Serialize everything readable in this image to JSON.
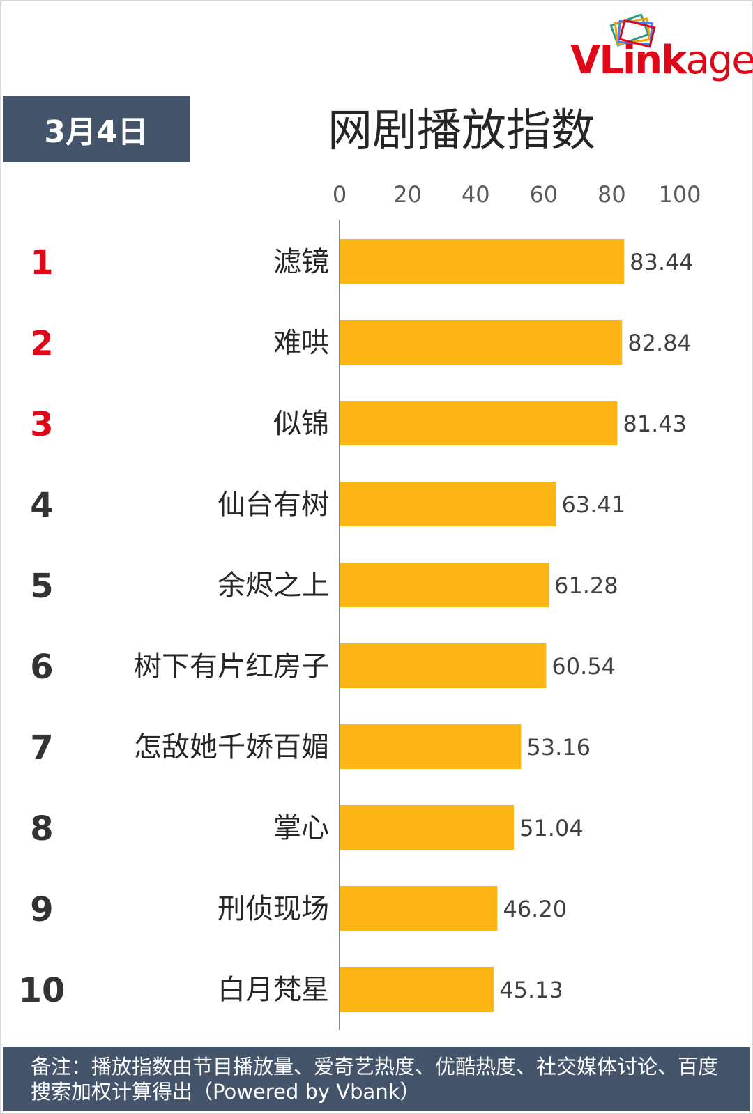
{
  "date_label": "3月4日",
  "logo": {
    "v": "V",
    "link": "Link",
    "age": "age"
  },
  "chart_data": {
    "type": "bar",
    "orientation": "horizontal",
    "title": "网剧播放指数",
    "xlim": [
      0,
      100
    ],
    "xticks": [
      "0",
      "20",
      "40",
      "60",
      "80",
      "100"
    ],
    "ranks": [
      "1",
      "2",
      "3",
      "4",
      "5",
      "6",
      "7",
      "8",
      "9",
      "10"
    ],
    "categories": [
      "滤镜",
      "难哄",
      "似锦",
      "仙台有树",
      "余烬之上",
      "树下有片红房子",
      "怎敌她千娇百媚",
      "掌心",
      "刑侦现场",
      "白月梵星"
    ],
    "values": [
      83.44,
      82.84,
      81.43,
      63.41,
      61.28,
      60.54,
      53.16,
      51.04,
      46.2,
      45.13
    ],
    "value_labels": [
      "83.44",
      "82.84",
      "81.43",
      "63.41",
      "61.28",
      "60.54",
      "53.16",
      "51.04",
      "46.20",
      "45.13"
    ],
    "bar_color": "#fdb515",
    "top_rank_color": "#e00818",
    "rank_color": "#333333",
    "grid": false
  },
  "footer": {
    "note": "备注：播放指数由节目播放量、爱奇艺热度、优酷热度、社交媒体讨论、百度搜索加权计算得出（Powered by Vbank）"
  }
}
